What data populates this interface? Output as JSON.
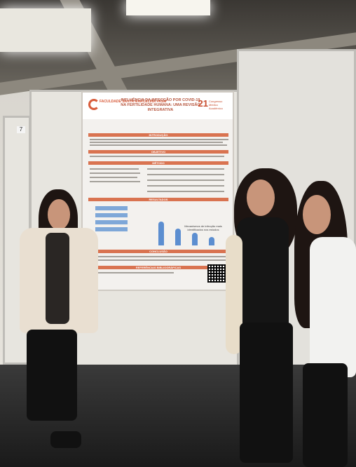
{
  "poster": {
    "logo_text": "FACULDADE SANTA MARCELINA FASM",
    "title": "INFLUÊNCIA DA INFECÇÃO POR COVID-19 NA FERTILIDADE HUMANA: UMA REVISÃO INTEGRATIVA",
    "badge_number": "21",
    "badge_text": "Congresso Médico Acadêmico",
    "sections": [
      "INTRODUÇÃO",
      "OBJETIVO",
      "MÉTODO",
      "RESULTADOS",
      "CONCLUSÃO",
      "REFERÊNCIAS BIBLIOGRÁFICAS"
    ],
    "chart_title": "Mecanismos de infecção mais identificados nos estudos",
    "chart_bars": [
      0.82,
      0.56,
      0.44,
      0.28
    ]
  },
  "booth_number": "7",
  "colors": {
    "accent": "#d97350",
    "chart": "#5c8ed0"
  }
}
